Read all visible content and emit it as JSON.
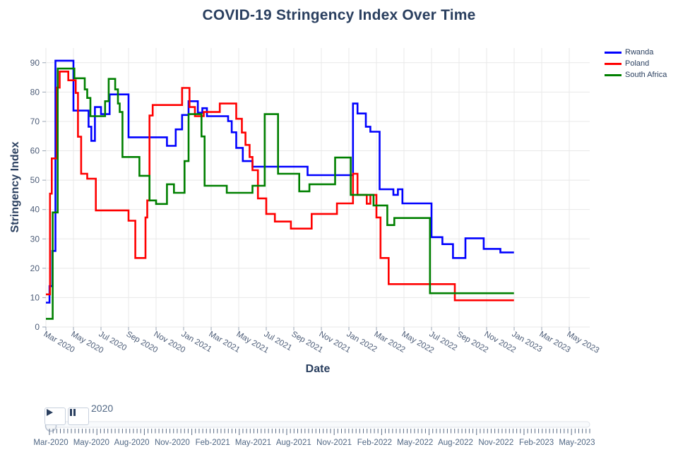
{
  "chart_data": {
    "type": "line",
    "line_shape": "step-after",
    "title": "COVID-19 Stringency Index Over Time",
    "xlabel": "Date",
    "ylabel": "Stringency Index",
    "ylim": [
      0,
      95
    ],
    "grid": true,
    "legend_position": "top-right-outside",
    "yticks": [
      0,
      10,
      20,
      30,
      40,
      50,
      60,
      70,
      80,
      90
    ],
    "xtick_labels": [
      "Mar 2020",
      "May 2020",
      "Jul 2020",
      "Sep 2020",
      "Nov 2020",
      "Jan 2021",
      "Mar 2021",
      "May 2021",
      "Jul 2021",
      "Sep 2021",
      "Nov 2021",
      "Jan 2022",
      "Mar 2022",
      "May 2022",
      "Jul 2022",
      "Sep 2022",
      "Nov 2022",
      "Jan 2023",
      "Mar 2023",
      "May 2023"
    ],
    "series": [
      {
        "name": "Rwanda",
        "color": "#0000ff",
        "points": [
          [
            "2020-03-01",
            8.3
          ],
          [
            "2020-03-09",
            13.9
          ],
          [
            "2020-03-15",
            25.9
          ],
          [
            "2020-03-22",
            90.7
          ],
          [
            "2020-05-01",
            73.7
          ],
          [
            "2020-06-04",
            68.2
          ],
          [
            "2020-06-10",
            63.4
          ],
          [
            "2020-06-18",
            74.9
          ],
          [
            "2020-07-01",
            72.5
          ],
          [
            "2020-07-20",
            79.2
          ],
          [
            "2020-09-01",
            64.6
          ],
          [
            "2020-11-25",
            61.7
          ],
          [
            "2020-12-14",
            67.3
          ],
          [
            "2020-12-28",
            72.2
          ],
          [
            "2021-01-12",
            76.9
          ],
          [
            "2021-02-02",
            73.0
          ],
          [
            "2021-02-12",
            74.5
          ],
          [
            "2021-02-22",
            71.8
          ],
          [
            "2021-04-08",
            70.1
          ],
          [
            "2021-04-16",
            66.3
          ],
          [
            "2021-04-26",
            61.0
          ],
          [
            "2021-05-10",
            56.5
          ],
          [
            "2021-06-01",
            54.6
          ],
          [
            "2021-10-01",
            51.7
          ],
          [
            "2022-01-10",
            76.1
          ],
          [
            "2022-01-20",
            72.7
          ],
          [
            "2022-02-08",
            68.2
          ],
          [
            "2022-02-18",
            66.5
          ],
          [
            "2022-03-08",
            46.9
          ],
          [
            "2022-04-08",
            45.0
          ],
          [
            "2022-04-18",
            46.9
          ],
          [
            "2022-04-28",
            42.1
          ],
          [
            "2022-07-01",
            30.6
          ],
          [
            "2022-07-25",
            28.2
          ],
          [
            "2022-08-18",
            23.5
          ],
          [
            "2022-09-15",
            30.2
          ],
          [
            "2022-10-25",
            26.6
          ],
          [
            "2022-12-01",
            25.4
          ],
          [
            "2022-12-31",
            25.4
          ]
        ]
      },
      {
        "name": "Poland",
        "color": "#ff0000",
        "points": [
          [
            "2020-03-01",
            11.1
          ],
          [
            "2020-03-10",
            45.4
          ],
          [
            "2020-03-14",
            57.4
          ],
          [
            "2020-03-25",
            81.5
          ],
          [
            "2020-04-01",
            87.0
          ],
          [
            "2020-04-20",
            84.0
          ],
          [
            "2020-05-06",
            79.7
          ],
          [
            "2020-05-11",
            64.8
          ],
          [
            "2020-05-18",
            52.2
          ],
          [
            "2020-06-01",
            50.5
          ],
          [
            "2020-06-20",
            39.7
          ],
          [
            "2020-09-01",
            36.2
          ],
          [
            "2020-09-16",
            23.5
          ],
          [
            "2020-10-08",
            37.3
          ],
          [
            "2020-10-12",
            43.1
          ],
          [
            "2020-10-17",
            72.0
          ],
          [
            "2020-10-24",
            75.6
          ],
          [
            "2020-12-28",
            81.4
          ],
          [
            "2021-01-14",
            74.9
          ],
          [
            "2021-01-26",
            71.8
          ],
          [
            "2021-02-15",
            73.2
          ],
          [
            "2021-03-20",
            76.1
          ],
          [
            "2021-04-26",
            70.9
          ],
          [
            "2021-05-08",
            66.2
          ],
          [
            "2021-05-16",
            62.0
          ],
          [
            "2021-05-25",
            57.9
          ],
          [
            "2021-06-01",
            53.4
          ],
          [
            "2021-06-13",
            43.8
          ],
          [
            "2021-07-01",
            38.5
          ],
          [
            "2021-07-20",
            35.9
          ],
          [
            "2021-08-25",
            33.5
          ],
          [
            "2021-10-10",
            38.5
          ],
          [
            "2021-12-05",
            42.1
          ],
          [
            "2022-01-10",
            52.2
          ],
          [
            "2022-01-20",
            45.0
          ],
          [
            "2022-02-10",
            42.0
          ],
          [
            "2022-02-18",
            45.0
          ],
          [
            "2022-03-01",
            37.3
          ],
          [
            "2022-03-10",
            23.5
          ],
          [
            "2022-03-28",
            14.6
          ],
          [
            "2022-08-22",
            9.1
          ],
          [
            "2022-12-31",
            9.1
          ]
        ]
      },
      {
        "name": "South Africa",
        "color": "#008000",
        "points": [
          [
            "2020-03-01",
            2.8
          ],
          [
            "2020-03-16",
            39.0
          ],
          [
            "2020-03-27",
            88.0
          ],
          [
            "2020-05-03",
            84.7
          ],
          [
            "2020-05-26",
            80.9
          ],
          [
            "2020-06-01",
            78.0
          ],
          [
            "2020-06-08",
            71.8
          ],
          [
            "2020-07-10",
            76.9
          ],
          [
            "2020-07-18",
            84.5
          ],
          [
            "2020-08-02",
            80.9
          ],
          [
            "2020-08-08",
            76.1
          ],
          [
            "2020-08-12",
            73.2
          ],
          [
            "2020-08-18",
            57.9
          ],
          [
            "2020-09-25",
            51.5
          ],
          [
            "2020-10-17",
            43.1
          ],
          [
            "2020-11-01",
            41.9
          ],
          [
            "2020-11-25",
            48.6
          ],
          [
            "2020-12-10",
            45.7
          ],
          [
            "2021-01-03",
            56.5
          ],
          [
            "2021-01-12",
            72.5
          ],
          [
            "2021-02-10",
            64.9
          ],
          [
            "2021-02-17",
            48.1
          ],
          [
            "2021-04-05",
            45.7
          ],
          [
            "2021-06-01",
            48.1
          ],
          [
            "2021-06-28",
            72.5
          ],
          [
            "2021-07-27",
            52.2
          ],
          [
            "2021-09-13",
            46.2
          ],
          [
            "2021-10-05",
            48.6
          ],
          [
            "2021-12-01",
            57.7
          ],
          [
            "2022-01-05",
            45.0
          ],
          [
            "2022-02-25",
            41.4
          ],
          [
            "2022-03-25",
            34.7
          ],
          [
            "2022-04-10",
            37.1
          ],
          [
            "2022-06-28",
            11.5
          ],
          [
            "2022-12-31",
            11.5
          ]
        ]
      }
    ]
  },
  "slider": {
    "current_value": "2020",
    "play_icon": "play-triangle",
    "pause_icon": "pause-bars",
    "tick_labels": [
      "Mar-2020",
      "May-2020",
      "Aug-2020",
      "Nov-2020",
      "Feb-2021",
      "May-2021",
      "Aug-2021",
      "Nov-2021",
      "Feb-2022",
      "May-2022",
      "Aug-2022",
      "Nov-2022",
      "Feb-2023",
      "May-2023"
    ]
  },
  "colors": {
    "title": "#2a3f5f",
    "tick_label": "#4c5c77",
    "grid": "#e8e8e8",
    "slider_label": "#506784"
  }
}
